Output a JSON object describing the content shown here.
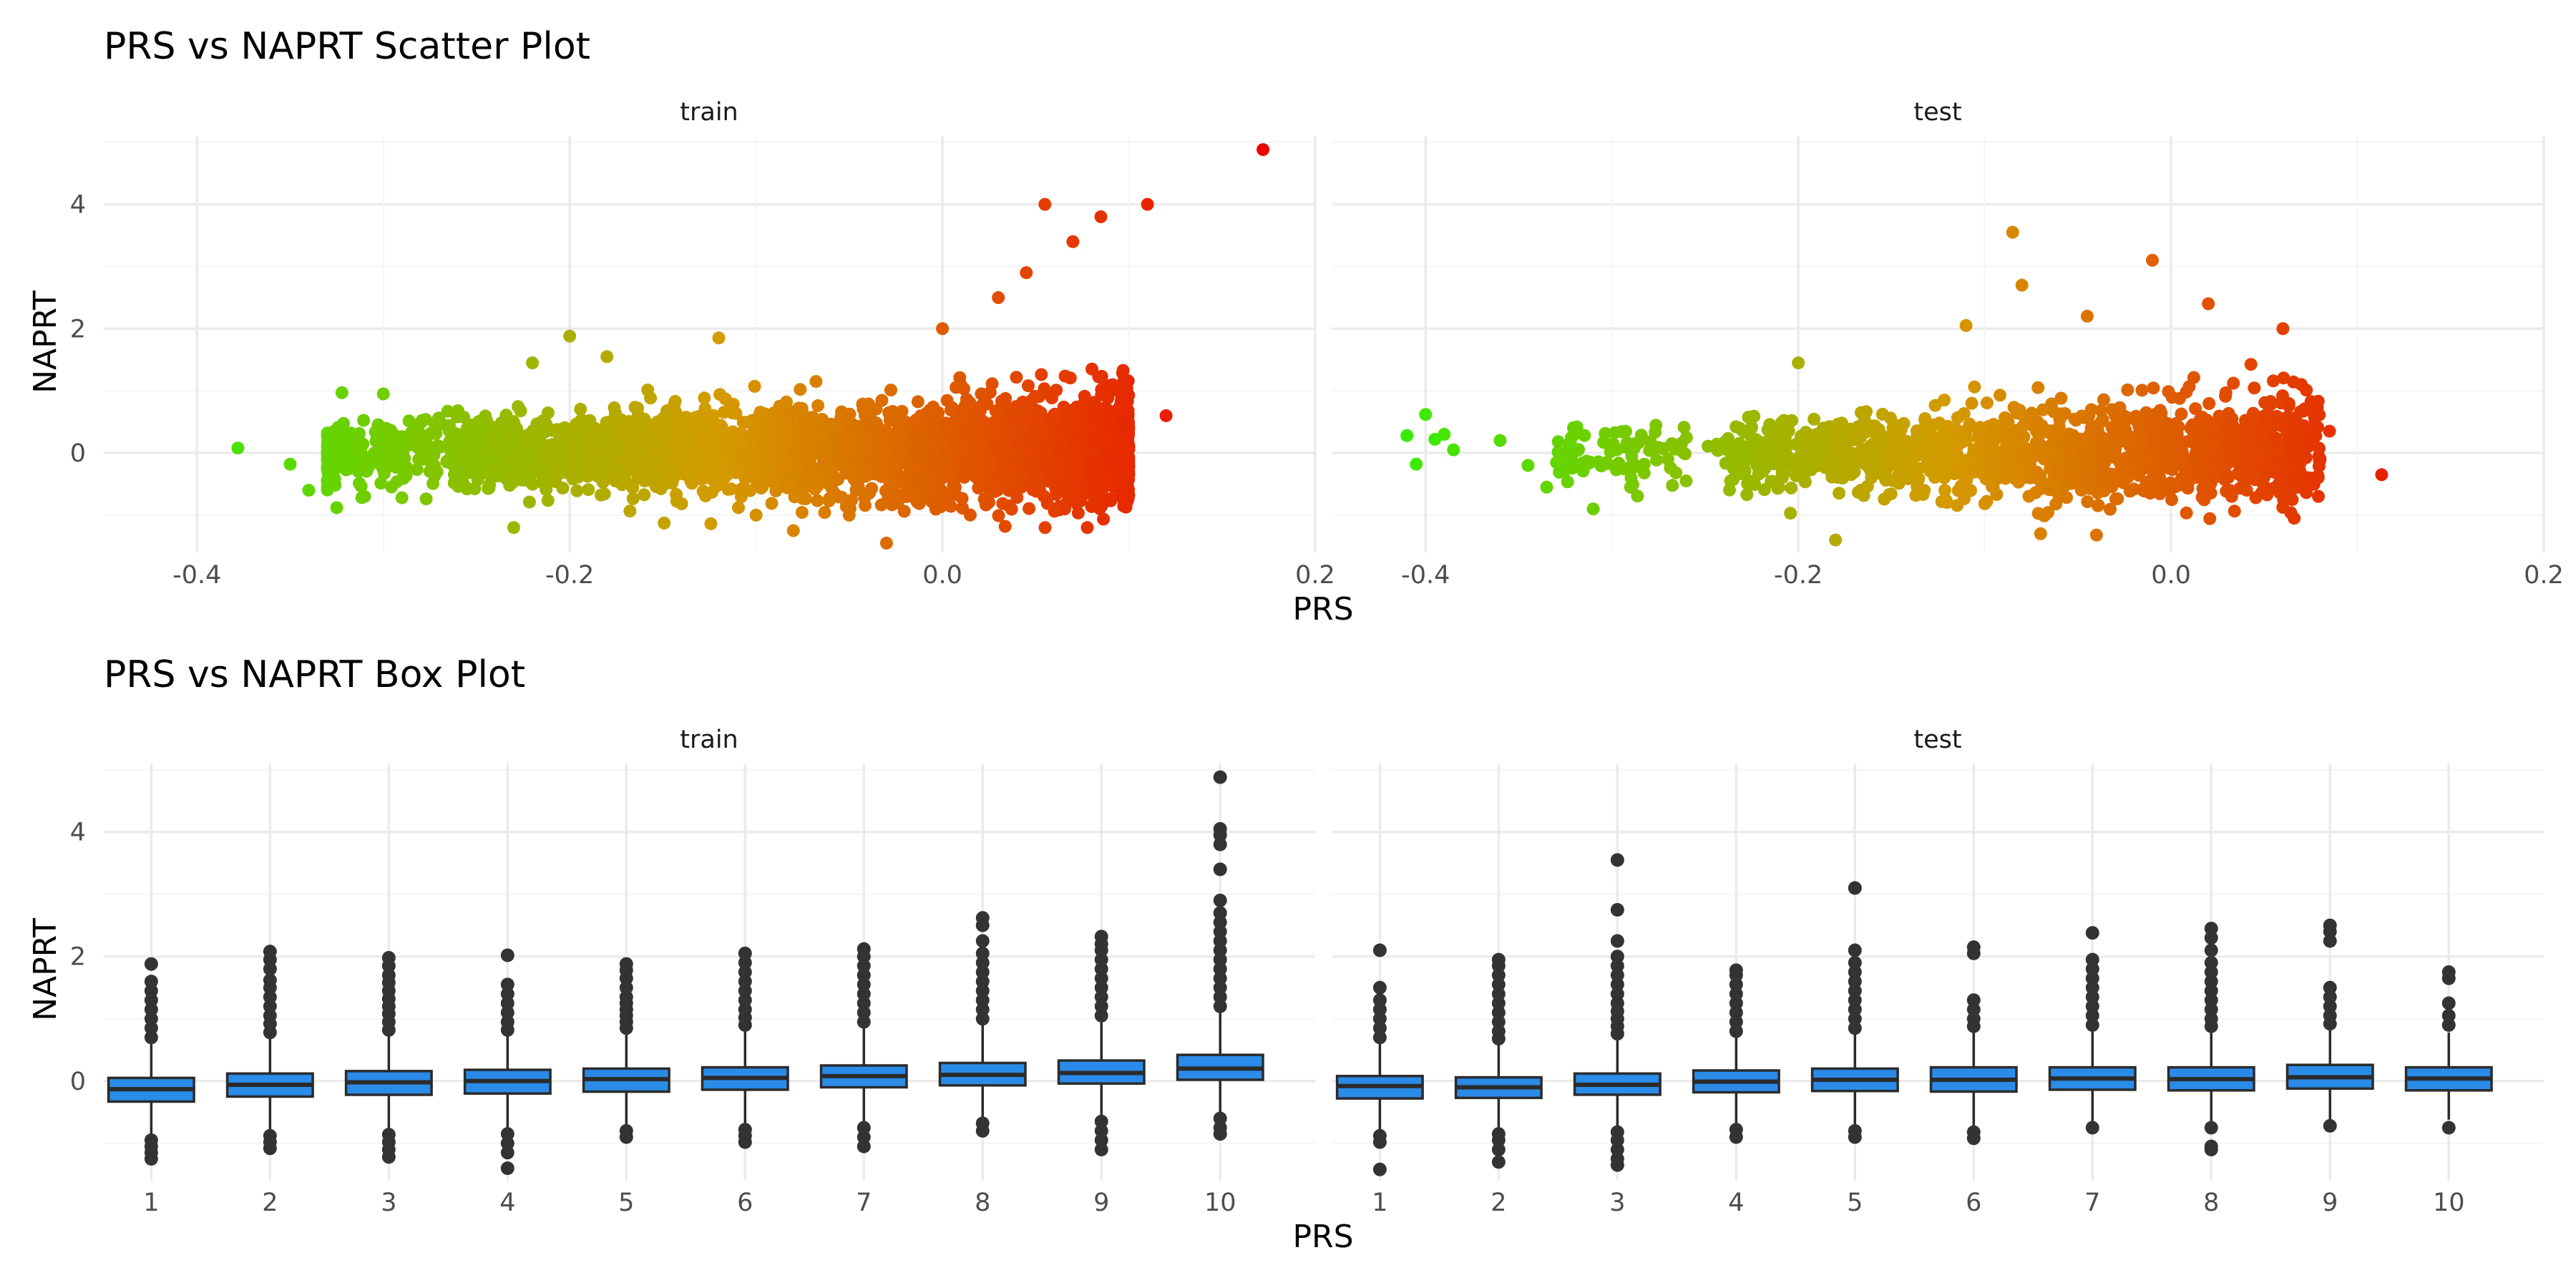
{
  "scatter": {
    "title": "PRS vs NAPRT Scatter Plot",
    "xlabel": "PRS",
    "ylabel": "NAPRT",
    "xticks": [
      "-0.4",
      "-0.2",
      "0.0",
      "0.2"
    ],
    "yticks": [
      "0",
      "2",
      "4"
    ],
    "facets": [
      "train",
      "test"
    ]
  },
  "box": {
    "title": "PRS vs NAPRT Box Plot",
    "xlabel": "PRS",
    "ylabel": "NAPRT",
    "xticks": [
      "1",
      "2",
      "3",
      "4",
      "5",
      "6",
      "7",
      "8",
      "9",
      "10"
    ],
    "yticks": [
      "0",
      "2",
      "4"
    ],
    "facets": [
      "train",
      "test"
    ]
  },
  "colors": {
    "low": "#33ee00",
    "mid": "#d49a00",
    "high": "#ee0000",
    "box_fill": "#2a8be8",
    "box_line": "#2b2b2b",
    "grid_major": "#ebebeb",
    "grid_minor": "#f5f5f5"
  },
  "chart_data": [
    {
      "type": "scatter",
      "title": "PRS vs NAPRT Scatter Plot",
      "xlabel": "PRS",
      "ylabel": "NAPRT",
      "facet": "train",
      "xlim": [
        -0.45,
        0.2
      ],
      "ylim": [
        -1.6,
        5.1
      ],
      "color_by": "PRS",
      "grid": true,
      "n_points_approx": 5000,
      "trend": "NAPRT centered near 0, spread widening and shifting upward as PRS increases",
      "points": [
        [
          -0.378,
          0.08
        ],
        [
          -0.35,
          -0.18
        ],
        [
          -0.34,
          -0.6
        ],
        [
          -0.33,
          0.12
        ],
        [
          -0.325,
          -0.88
        ],
        [
          -0.31,
          -0.7
        ],
        [
          -0.3,
          0.95
        ],
        [
          -0.29,
          -0.72
        ],
        [
          -0.28,
          0.3
        ],
        [
          -0.26,
          0.68
        ],
        [
          -0.23,
          -1.2
        ],
        [
          -0.22,
          1.45
        ],
        [
          -0.2,
          1.88
        ],
        [
          -0.18,
          1.55
        ],
        [
          -0.12,
          1.85
        ],
        [
          -0.1,
          -1.0
        ],
        [
          -0.08,
          -1.25
        ],
        [
          -0.05,
          -1.0
        ],
        [
          -0.03,
          -1.45
        ],
        [
          0.0,
          2.0
        ],
        [
          0.03,
          2.5
        ],
        [
          0.045,
          2.9
        ],
        [
          0.055,
          4.0
        ],
        [
          0.07,
          3.4
        ],
        [
          0.085,
          3.8
        ],
        [
          0.11,
          4.0
        ],
        [
          0.12,
          0.6
        ],
        [
          0.172,
          4.88
        ],
        [
          0.08,
          -0.15
        ],
        [
          0.09,
          0.5
        ]
      ]
    },
    {
      "type": "scatter",
      "title": "PRS vs NAPRT Scatter Plot",
      "xlabel": "PRS",
      "ylabel": "NAPRT",
      "facet": "test",
      "xlim": [
        -0.45,
        0.2
      ],
      "ylim": [
        -1.6,
        5.1
      ],
      "color_by": "PRS",
      "grid": true,
      "n_points_approx": 2000,
      "points": [
        [
          -0.41,
          0.28
        ],
        [
          -0.405,
          -0.18
        ],
        [
          -0.4,
          0.62
        ],
        [
          -0.395,
          0.22
        ],
        [
          -0.39,
          0.3
        ],
        [
          -0.385,
          0.05
        ],
        [
          -0.36,
          0.2
        ],
        [
          -0.345,
          -0.2
        ],
        [
          -0.335,
          -0.55
        ],
        [
          -0.32,
          0.3
        ],
        [
          -0.31,
          -0.9
        ],
        [
          -0.29,
          -0.55
        ],
        [
          -0.27,
          -0.1
        ],
        [
          -0.2,
          1.45
        ],
        [
          -0.18,
          -1.4
        ],
        [
          -0.11,
          2.05
        ],
        [
          -0.085,
          3.55
        ],
        [
          -0.08,
          2.7
        ],
        [
          -0.07,
          -1.3
        ],
        [
          -0.045,
          2.2
        ],
        [
          -0.04,
          -1.32
        ],
        [
          -0.01,
          3.1
        ],
        [
          0.02,
          2.4
        ],
        [
          0.06,
          2.0
        ],
        [
          0.085,
          0.35
        ],
        [
          0.113,
          -0.35
        ],
        [
          0.065,
          -0.75
        ],
        [
          0.08,
          -0.1
        ]
      ]
    },
    {
      "type": "box",
      "title": "PRS vs NAPRT Box Plot",
      "xlabel": "PRS",
      "ylabel": "NAPRT",
      "facet": "train",
      "categories": [
        "1",
        "2",
        "3",
        "4",
        "5",
        "6",
        "7",
        "8",
        "9",
        "10"
      ],
      "ylim": [
        -1.6,
        5.1
      ],
      "grid": true,
      "boxes": [
        {
          "q1": -0.33,
          "median": -0.13,
          "q3": 0.05,
          "whisker_low": -0.88,
          "whisker_high": 0.6,
          "outliers_low": [
            -0.95,
            -1.05,
            -1.15,
            -1.25
          ],
          "outliers_high": [
            0.7,
            0.85,
            1.0,
            1.15,
            1.3,
            1.45,
            1.6,
            1.88
          ]
        },
        {
          "q1": -0.25,
          "median": -0.06,
          "q3": 0.12,
          "whisker_low": -0.8,
          "whisker_high": 0.68,
          "outliers_low": [
            -0.88,
            -0.98,
            -1.08
          ],
          "outliers_high": [
            0.78,
            0.92,
            1.05,
            1.2,
            1.35,
            1.5,
            1.62,
            1.8,
            1.95,
            2.08
          ]
        },
        {
          "q1": -0.22,
          "median": -0.02,
          "q3": 0.16,
          "whisker_low": -0.78,
          "whisker_high": 0.72,
          "outliers_low": [
            -0.86,
            -0.98,
            -1.1,
            -1.22
          ],
          "outliers_high": [
            0.82,
            0.95,
            1.08,
            1.2,
            1.32,
            1.45,
            1.58,
            1.7,
            1.85,
            1.98
          ]
        },
        {
          "q1": -0.2,
          "median": 0.0,
          "q3": 0.18,
          "whisker_low": -0.75,
          "whisker_high": 0.74,
          "outliers_low": [
            -0.85,
            -1.0,
            -1.15,
            -1.4
          ],
          "outliers_high": [
            0.82,
            0.95,
            1.1,
            1.25,
            1.4,
            1.55,
            2.02
          ]
        },
        {
          "q1": -0.17,
          "median": 0.03,
          "q3": 0.2,
          "whisker_low": -0.72,
          "whisker_high": 0.76,
          "outliers_low": [
            -0.8,
            -0.9
          ],
          "outliers_high": [
            0.85,
            0.95,
            1.05,
            1.15,
            1.25,
            1.35,
            1.5,
            1.65,
            1.78,
            1.88
          ]
        },
        {
          "q1": -0.14,
          "median": 0.05,
          "q3": 0.22,
          "whisker_low": -0.7,
          "whisker_high": 0.8,
          "outliers_low": [
            -0.78,
            -0.88,
            -0.98
          ],
          "outliers_high": [
            0.9,
            1.02,
            1.15,
            1.3,
            1.45,
            1.6,
            1.75,
            1.9,
            2.05
          ]
        },
        {
          "q1": -0.1,
          "median": 0.08,
          "q3": 0.25,
          "whisker_low": -0.65,
          "whisker_high": 0.85,
          "outliers_low": [
            -0.75,
            -0.9,
            -1.05
          ],
          "outliers_high": [
            0.95,
            1.1,
            1.25,
            1.4,
            1.55,
            1.7,
            1.85,
            2.0,
            2.12
          ]
        },
        {
          "q1": -0.07,
          "median": 0.1,
          "q3": 0.29,
          "whisker_low": -0.6,
          "whisker_high": 0.9,
          "outliers_low": [
            -0.68,
            -0.8
          ],
          "outliers_high": [
            1.0,
            1.15,
            1.3,
            1.45,
            1.6,
            1.75,
            1.9,
            2.05,
            2.25,
            2.5,
            2.62
          ]
        },
        {
          "q1": -0.04,
          "median": 0.13,
          "q3": 0.33,
          "whisker_low": -0.55,
          "whisker_high": 0.95,
          "outliers_low": [
            -0.65,
            -0.8,
            -0.95,
            -1.1
          ],
          "outliers_high": [
            1.05,
            1.2,
            1.35,
            1.5,
            1.65,
            1.8,
            1.95,
            2.1,
            2.2,
            2.32
          ]
        },
        {
          "q1": 0.02,
          "median": 0.2,
          "q3": 0.42,
          "whisker_low": -0.5,
          "whisker_high": 1.1,
          "outliers_low": [
            -0.6,
            -0.75,
            -0.85
          ],
          "outliers_high": [
            1.2,
            1.35,
            1.5,
            1.65,
            1.8,
            1.95,
            2.1,
            2.25,
            2.4,
            2.55,
            2.7,
            2.9,
            3.4,
            3.8,
            3.95,
            4.05,
            4.88
          ]
        }
      ]
    },
    {
      "type": "box",
      "title": "PRS vs NAPRT Box Plot",
      "xlabel": "PRS",
      "ylabel": "NAPRT",
      "facet": "test",
      "categories": [
        "1",
        "2",
        "3",
        "4",
        "5",
        "6",
        "7",
        "8",
        "9",
        "10"
      ],
      "ylim": [
        -1.6,
        5.1
      ],
      "grid": true,
      "boxes": [
        {
          "q1": -0.28,
          "median": -0.08,
          "q3": 0.08,
          "whisker_low": -0.8,
          "whisker_high": 0.6,
          "outliers_low": [
            -0.88,
            -0.98,
            -1.42
          ],
          "outliers_high": [
            0.7,
            0.85,
            1.0,
            1.15,
            1.3,
            1.5,
            2.1
          ]
        },
        {
          "q1": -0.27,
          "median": -0.1,
          "q3": 0.06,
          "whisker_low": -0.76,
          "whisker_high": 0.58,
          "outliers_low": [
            -0.85,
            -0.95,
            -1.1,
            -1.3
          ],
          "outliers_high": [
            0.68,
            0.8,
            0.95,
            1.1,
            1.25,
            1.4,
            1.55,
            1.7,
            1.85,
            1.95
          ]
        },
        {
          "q1": -0.22,
          "median": -0.06,
          "q3": 0.12,
          "whisker_low": -0.72,
          "whisker_high": 0.66,
          "outliers_low": [
            -0.82,
            -0.95,
            -1.1,
            -1.25,
            -1.35
          ],
          "outliers_high": [
            0.76,
            0.88,
            1.0,
            1.12,
            1.25,
            1.4,
            1.55,
            1.7,
            1.85,
            2.0,
            2.25,
            2.75,
            3.55
          ]
        },
        {
          "q1": -0.18,
          "median": -0.01,
          "q3": 0.17,
          "whisker_low": -0.7,
          "whisker_high": 0.7,
          "outliers_low": [
            -0.78,
            -0.9
          ],
          "outliers_high": [
            0.8,
            0.95,
            1.1,
            1.25,
            1.4,
            1.55,
            1.7,
            1.78
          ]
        },
        {
          "q1": -0.16,
          "median": 0.02,
          "q3": 0.2,
          "whisker_low": -0.7,
          "whisker_high": 0.75,
          "outliers_low": [
            -0.8,
            -0.9
          ],
          "outliers_high": [
            0.85,
            1.0,
            1.15,
            1.3,
            1.45,
            1.6,
            1.75,
            1.9,
            2.1,
            3.1
          ]
        },
        {
          "q1": -0.17,
          "median": 0.02,
          "q3": 0.22,
          "whisker_low": -0.75,
          "whisker_high": 0.78,
          "outliers_low": [
            -0.82,
            -0.92
          ],
          "outliers_high": [
            0.88,
            1.0,
            1.15,
            1.3,
            2.05,
            2.15
          ]
        },
        {
          "q1": -0.14,
          "median": 0.04,
          "q3": 0.22,
          "whisker_low": -0.68,
          "whisker_high": 0.8,
          "outliers_low": [
            -0.75
          ],
          "outliers_high": [
            0.9,
            1.05,
            1.2,
            1.35,
            1.5,
            1.65,
            1.8,
            1.95,
            2.38
          ]
        },
        {
          "q1": -0.15,
          "median": 0.03,
          "q3": 0.22,
          "whisker_low": -0.65,
          "whisker_high": 0.78,
          "outliers_low": [
            -0.75,
            -1.05,
            -1.1
          ],
          "outliers_high": [
            0.88,
            1.0,
            1.15,
            1.3,
            1.45,
            1.6,
            1.75,
            1.9,
            2.1,
            2.3,
            2.45
          ]
        },
        {
          "q1": -0.12,
          "median": 0.06,
          "q3": 0.26,
          "whisker_low": -0.62,
          "whisker_high": 0.82,
          "outliers_low": [
            -0.72
          ],
          "outliers_high": [
            0.92,
            1.05,
            1.2,
            1.35,
            1.5,
            2.25,
            2.4,
            2.5
          ]
        },
        {
          "q1": -0.15,
          "median": 0.04,
          "q3": 0.22,
          "whisker_low": -0.62,
          "whisker_high": 0.78,
          "outliers_low": [
            -0.75
          ],
          "outliers_high": [
            0.9,
            1.05,
            1.25,
            1.65,
            1.75
          ]
        }
      ]
    }
  ]
}
